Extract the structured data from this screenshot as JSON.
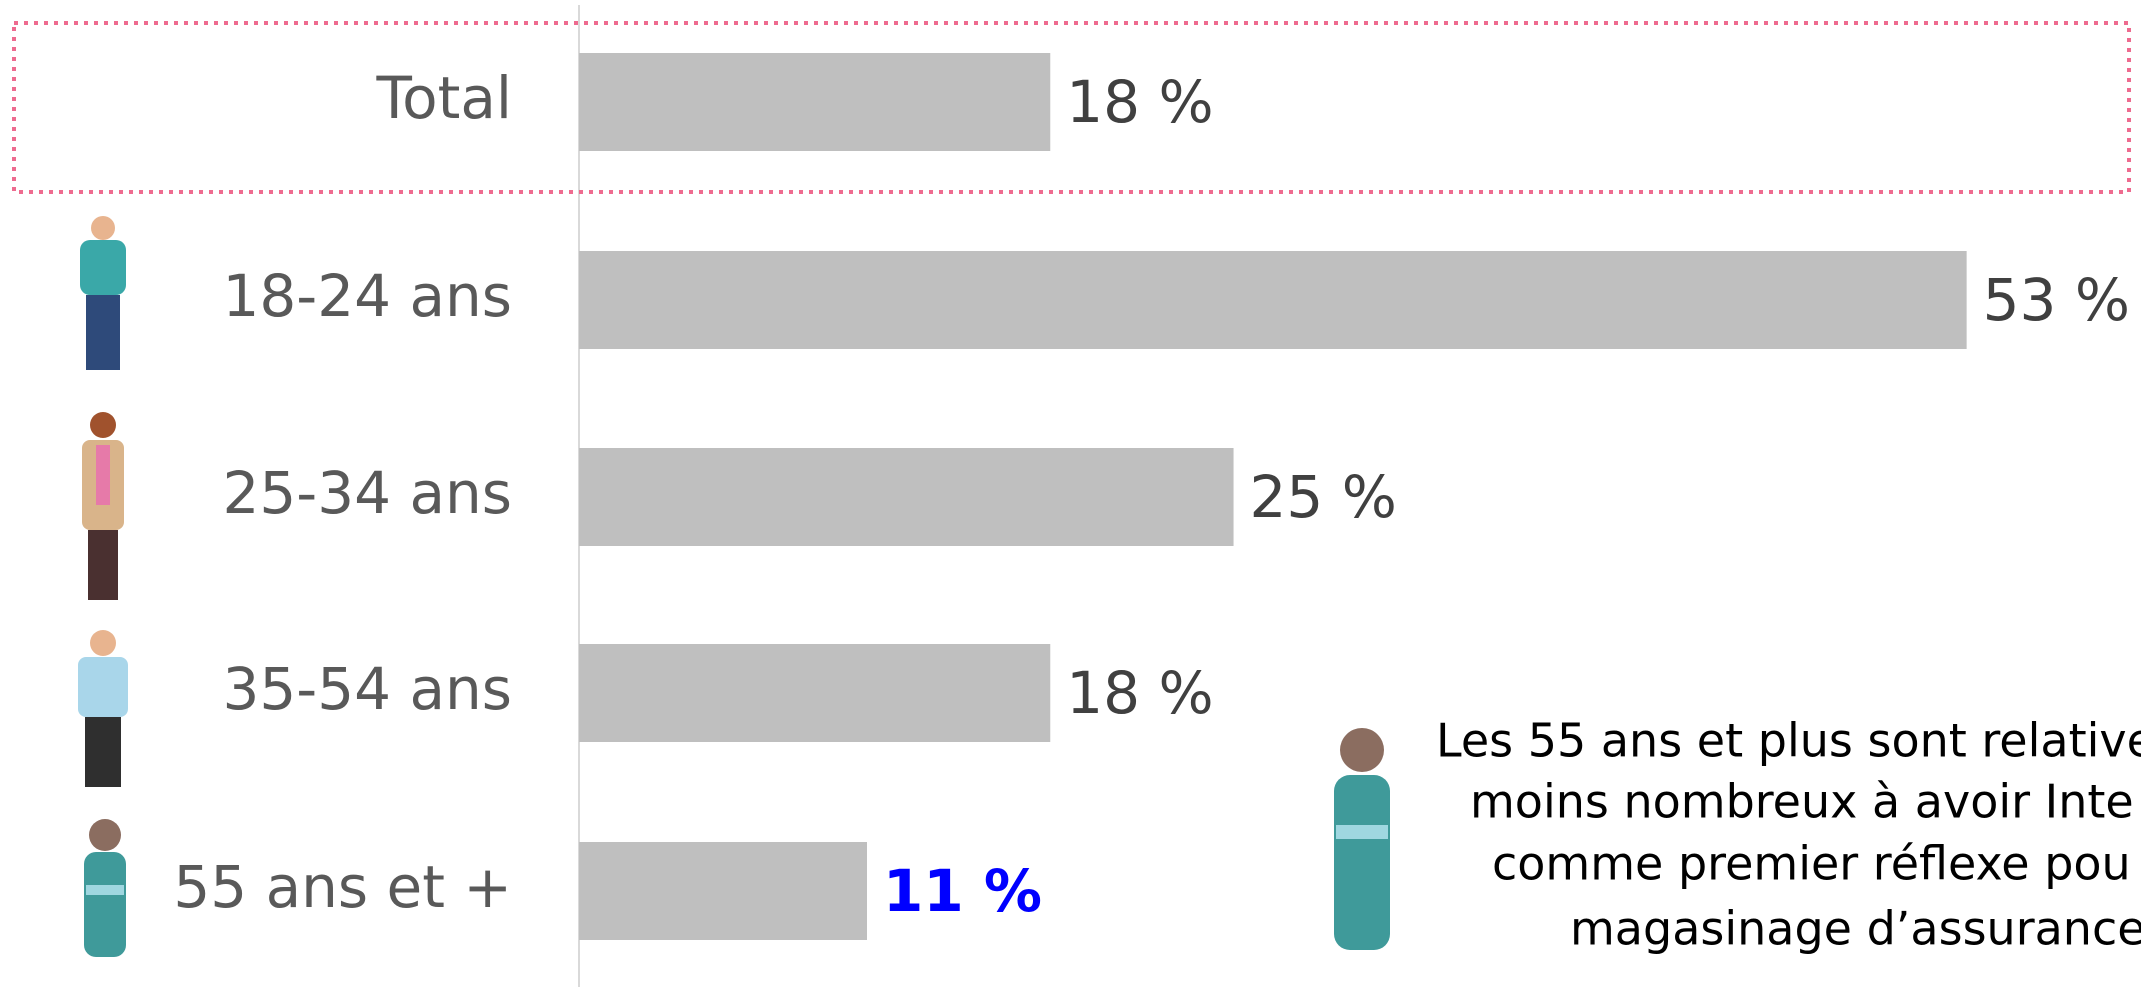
{
  "chart_data": {
    "type": "bar",
    "orientation": "horizontal",
    "categories": [
      "Total",
      "18-24 ans",
      "25-34 ans",
      "35-54 ans",
      "55 ans et +"
    ],
    "values": [
      18,
      53,
      25,
      18,
      11
    ],
    "value_labels": [
      "18 %",
      "53 %",
      "25 %",
      "18 %",
      "11 %"
    ],
    "color": "#bfbfbf",
    "xlim": [
      0,
      55
    ],
    "highlight": {
      "index": 4,
      "color": "#0000ff"
    },
    "annotation": [
      "Les 55 ans et plus sont relative",
      "moins nombreux à avoir Inte",
      "comme premier réflexe pou",
      "magasinage d’assurance"
    ]
  }
}
